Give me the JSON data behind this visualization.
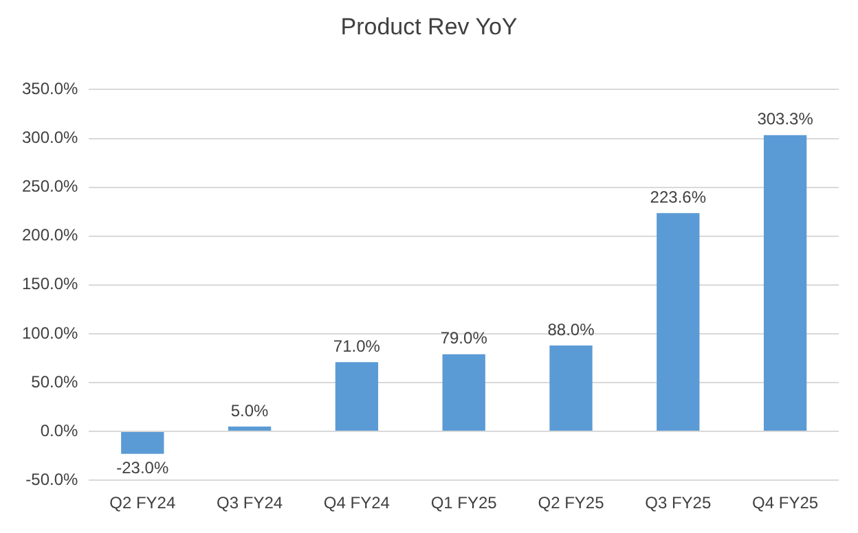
{
  "chart_data": {
    "type": "bar",
    "title": "Product Rev YoY",
    "categories": [
      "Q2 FY24",
      "Q3 FY24",
      "Q4 FY24",
      "Q1 FY25",
      "Q2 FY25",
      "Q3 FY25",
      "Q4 FY25"
    ],
    "values": [
      -23.0,
      5.0,
      71.0,
      79.0,
      88.0,
      223.6,
      303.3
    ],
    "value_labels": [
      "-23.0%",
      "5.0%",
      "71.0%",
      "79.0%",
      "88.0%",
      "223.6%",
      "303.3%"
    ],
    "color": "#5b9bd5",
    "ylim": [
      -50,
      350
    ],
    "yticks": [
      {
        "value": -50,
        "label": "-50.0%"
      },
      {
        "value": 0,
        "label": "0.0%"
      },
      {
        "value": 50,
        "label": "50.0%"
      },
      {
        "value": 100,
        "label": "100.0%"
      },
      {
        "value": 150,
        "label": "150.0%"
      },
      {
        "value": 200,
        "label": "200.0%"
      },
      {
        "value": 250,
        "label": "250.0%"
      },
      {
        "value": 300,
        "label": "300.0%"
      },
      {
        "value": 350,
        "label": "350.0%"
      }
    ],
    "grid": "y"
  }
}
